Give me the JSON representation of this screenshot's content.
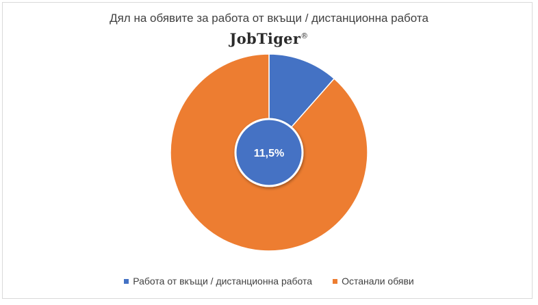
{
  "chart_data": {
    "type": "pie",
    "title": "Дял на обявите за работа от вкъщи / дистанционна работа",
    "logo_text": "JobTiger",
    "logo_mark": "®",
    "categories": [
      "Работа от вкъщи / дистанционна работа",
      "Останали обяви"
    ],
    "values": [
      11.5,
      88.5
    ],
    "colors": [
      "#4472c4",
      "#ed7d31"
    ],
    "center_label": "11,5%",
    "legend_position": "bottom"
  }
}
